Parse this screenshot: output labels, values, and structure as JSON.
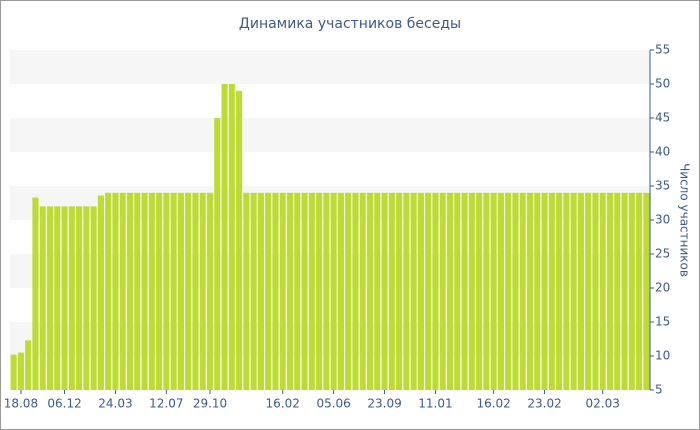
{
  "chart_data": {
    "type": "bar",
    "title": "Динамика участников беседы",
    "y_axis_label": "Число участников",
    "categories": [
      null,
      "18.08",
      null,
      null,
      null,
      null,
      null,
      "06.12",
      null,
      null,
      null,
      null,
      null,
      null,
      "24.03",
      null,
      null,
      null,
      null,
      null,
      null,
      "12.07",
      null,
      null,
      null,
      null,
      null,
      "29.10",
      null,
      null,
      null,
      null,
      null,
      null,
      null,
      null,
      null,
      "16.02",
      null,
      null,
      null,
      null,
      null,
      null,
      "05.06",
      null,
      null,
      null,
      null,
      null,
      null,
      "23.09",
      null,
      null,
      null,
      null,
      null,
      null,
      "11.01",
      null,
      null,
      null,
      null,
      null,
      null,
      null,
      "16.02",
      null,
      null,
      null,
      null,
      null,
      null,
      "23.02",
      null,
      null,
      null,
      null,
      null,
      null,
      null,
      "02.03",
      null,
      null,
      null,
      null,
      null,
      null
    ],
    "values": [
      10.2,
      10.5,
      12.3,
      33.3,
      32,
      32,
      32,
      32,
      32,
      32,
      32,
      32,
      33.6,
      34,
      34,
      34,
      34,
      34,
      34,
      34,
      34,
      34,
      34,
      34,
      34,
      34,
      34,
      34,
      45,
      50,
      50,
      49,
      34,
      34,
      34,
      34,
      34,
      34,
      34,
      34,
      34,
      34,
      34,
      34,
      34,
      34,
      34,
      34,
      34,
      34,
      34,
      34,
      34,
      34,
      34,
      34,
      34,
      34,
      34,
      34,
      34,
      34,
      34,
      34,
      34,
      34,
      34,
      34,
      34,
      34,
      34,
      34,
      34,
      34,
      34,
      34,
      34,
      34,
      34,
      34,
      34,
      34,
      34,
      34,
      34,
      34,
      34,
      34
    ],
    "color": "#bddb32",
    "ylim": [
      5,
      55
    ],
    "yticks": [
      5,
      10,
      15,
      20,
      25,
      30,
      35,
      40,
      45,
      50,
      55
    ],
    "y_axis_side": "right",
    "banded_background": true
  }
}
